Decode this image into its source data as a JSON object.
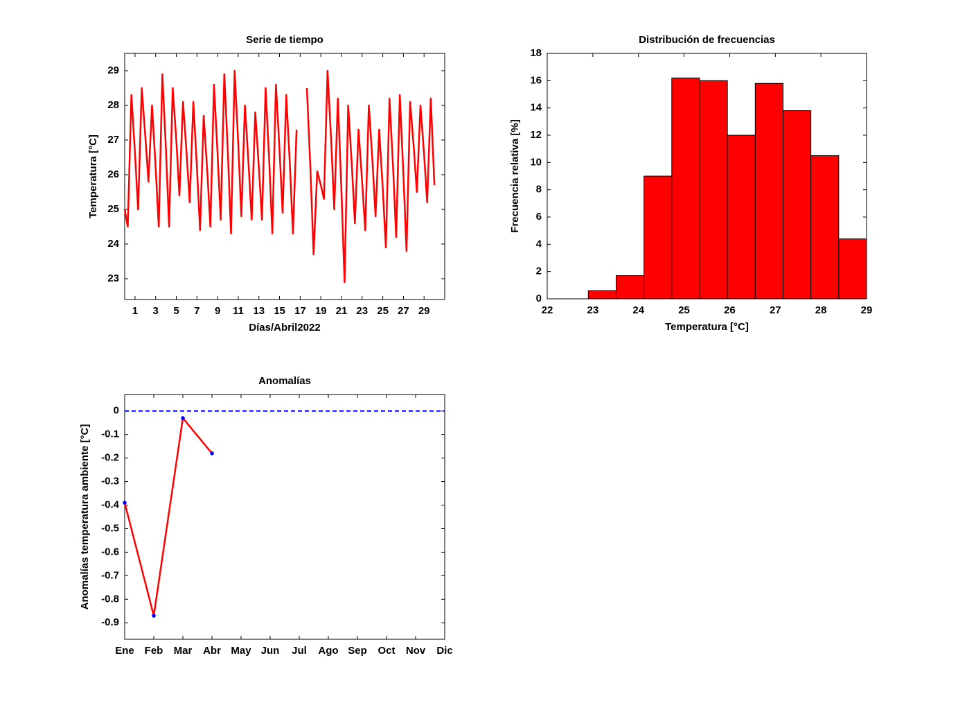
{
  "chart_data": [
    {
      "type": "line",
      "title": "Serie de tiempo",
      "xlabel": "Días/Abril2022",
      "ylabel": "Temperatura [°C]",
      "x": [
        0,
        0.3,
        0.65,
        1,
        1.3,
        1.65,
        2,
        2.3,
        2.65,
        3,
        3.3,
        3.65,
        4,
        4.3,
        4.65,
        5,
        5.3,
        5.65,
        6,
        6.3,
        6.65,
        7,
        7.3,
        7.65,
        8,
        8.3,
        8.65,
        9,
        9.3,
        9.65,
        10,
        10.3,
        10.65,
        11,
        11.3,
        11.65,
        12,
        12.3,
        12.65,
        13,
        13.3,
        13.65,
        14,
        14.3,
        14.65,
        15,
        15.3,
        15.65,
        16,
        16.3,
        16.65,
        17,
        17.3,
        17.65,
        18,
        18.3,
        18.65,
        19,
        19.3,
        19.65,
        20,
        20.3,
        20.65,
        21,
        21.3,
        21.65,
        22,
        22.3,
        22.65,
        23,
        23.3,
        23.65,
        24,
        24.3,
        24.65,
        25,
        25.3,
        25.65,
        26,
        26.3,
        26.65,
        27,
        27.3,
        27.65,
        28,
        28.3,
        28.65,
        29,
        29.3,
        29.65,
        30
      ],
      "series": [
        {
          "color": "#ff0000",
          "values": [
            25.0,
            24.5,
            28.3,
            26.6,
            25.0,
            28.5,
            27.1,
            25.8,
            28.0,
            26.2,
            24.5,
            28.9,
            26.7,
            24.5,
            28.5,
            27.0,
            25.4,
            28.1,
            26.6,
            25.2,
            28.1,
            26.2,
            24.4,
            27.7,
            26.1,
            24.5,
            28.6,
            26.6,
            24.7,
            28.9,
            26.6,
            24.3,
            29.0,
            26.9,
            24.8,
            28.0,
            26.3,
            24.7,
            27.8,
            26.2,
            24.7,
            28.5,
            26.4,
            24.3,
            28.6,
            26.7,
            24.9,
            28.3,
            26.3,
            24.3,
            27.3,
            null,
            null,
            28.5,
            26.1,
            23.7,
            26.1,
            25.7,
            25.3,
            29.0,
            27.0,
            25.0,
            28.2,
            25.5,
            22.9,
            28.0,
            26.3,
            24.6,
            27.3,
            25.8,
            24.4,
            28.0,
            26.4,
            24.8,
            27.3,
            25.6,
            23.9,
            28.2,
            26.2,
            24.2,
            28.3,
            26.0,
            23.8,
            28.1,
            26.8,
            25.5,
            28.0,
            26.6,
            25.2,
            28.2,
            25.7
          ]
        }
      ],
      "xlim": [
        0,
        31
      ],
      "xticks": [
        1,
        3,
        5,
        7,
        9,
        11,
        13,
        15,
        17,
        19,
        21,
        23,
        25,
        27,
        29
      ],
      "ylim": [
        22.4,
        29.5
      ],
      "yticks": [
        23,
        24,
        25,
        26,
        27,
        28,
        29
      ]
    },
    {
      "type": "histogram",
      "title": "Distribución de frecuencias",
      "xlabel": "Temperatura [°C]",
      "ylabel": "Frecuencia relativa [%]",
      "bins": [
        22.9,
        23.51,
        24.12,
        24.73,
        25.34,
        25.95,
        26.56,
        27.17,
        27.78,
        28.39,
        29.0
      ],
      "values": [
        0.6,
        1.7,
        9.0,
        16.2,
        16.0,
        12.0,
        15.8,
        13.8,
        10.5,
        4.4
      ],
      "color": "#ff0000",
      "edgecolor": "#000000",
      "xlim": [
        22,
        29
      ],
      "xticks": [
        22,
        23,
        24,
        25,
        26,
        27,
        28,
        29
      ],
      "ylim": [
        0,
        18
      ],
      "yticks": [
        0,
        2,
        4,
        6,
        8,
        10,
        12,
        14,
        16,
        18
      ]
    },
    {
      "type": "category-line",
      "title": "Anomalías",
      "ylabel": "Anomalías temperatura ambiente [°C]",
      "categories": [
        "Ene",
        "Feb",
        "Mar",
        "Abr",
        "May",
        "Jun",
        "Jul",
        "Ago",
        "Sep",
        "Oct",
        "Nov",
        "Dic"
      ],
      "series": [
        {
          "color": "#ff0000",
          "marker_color": "#0000ff",
          "values": [
            -0.39,
            -0.87,
            -0.03,
            -0.18,
            null,
            null,
            null,
            null,
            null,
            null,
            null,
            null
          ]
        }
      ],
      "reference_line": {
        "value": 0,
        "color": "#0000ff",
        "style": "dashed"
      },
      "ylim": [
        -0.97,
        0.07
      ],
      "yticks": [
        0,
        -0.1,
        -0.2,
        -0.3,
        -0.4,
        -0.5,
        -0.6,
        -0.7,
        -0.8,
        -0.9
      ]
    }
  ]
}
